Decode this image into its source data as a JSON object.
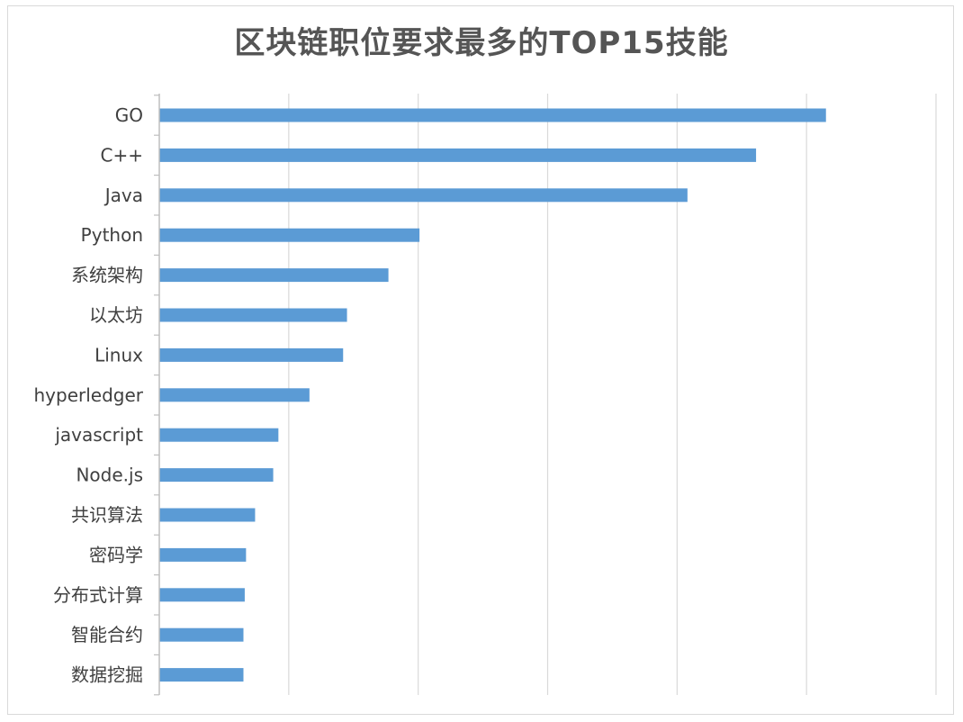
{
  "chart_data": {
    "type": "bar",
    "orientation": "horizontal",
    "title": "区块链职位要求最多的TOP15技能",
    "categories": [
      "GO",
      "C++",
      "Java",
      "Python",
      "系统架构",
      "以太坊",
      "Linux",
      "hyperledger",
      "javascript",
      "Node.js",
      "共识算法",
      "密码学",
      "分布式计算",
      "智能合约",
      "数据挖掘"
    ],
    "values": [
      5.15,
      4.61,
      4.08,
      2.01,
      1.77,
      1.45,
      1.42,
      1.16,
      0.92,
      0.88,
      0.74,
      0.67,
      0.66,
      0.65,
      0.65
    ],
    "xlim": [
      0,
      6
    ],
    "grid": true,
    "legend": "none",
    "bar_color": "#5b9bd5",
    "grid_color": "#d9d9d9",
    "axis_color": "#bfbfbf"
  }
}
